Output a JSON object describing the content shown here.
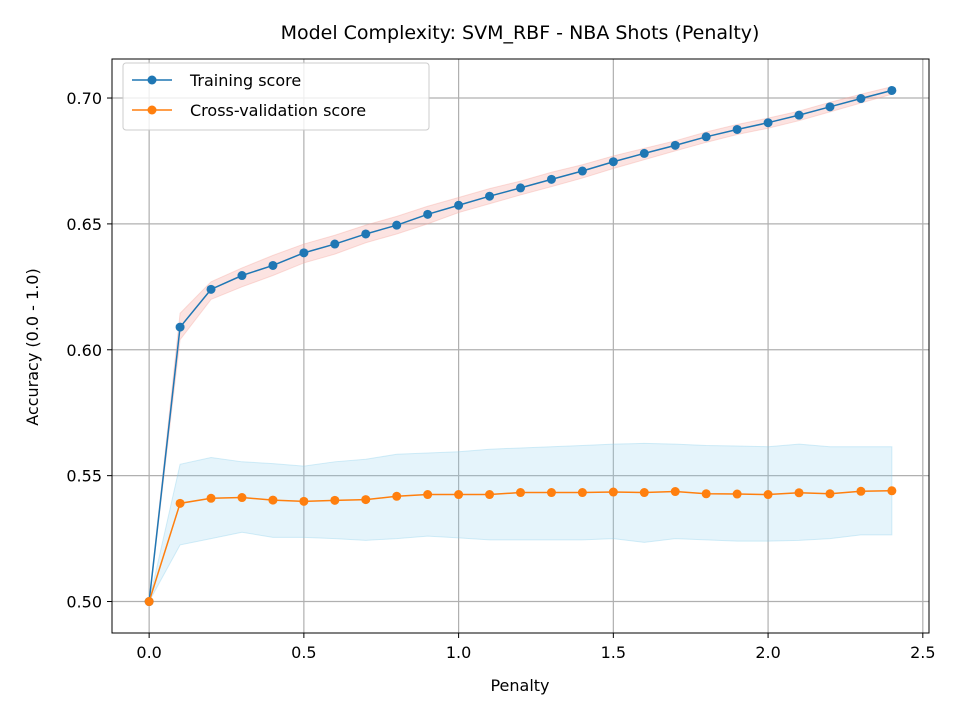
{
  "chart_data": {
    "type": "line",
    "title": "Model Complexity: SVM_RBF - NBA Shots (Penalty)",
    "xlabel": "Penalty",
    "ylabel": "Accuracy (0.0 - 1.0)",
    "xlim": [
      -0.12,
      2.52
    ],
    "ylim": [
      0.4875,
      0.7155
    ],
    "xticks": [
      0.0,
      0.5,
      1.0,
      1.5,
      2.0,
      2.5
    ],
    "xtick_labels": [
      "0.0",
      "0.5",
      "1.0",
      "1.5",
      "2.0",
      "2.5"
    ],
    "yticks": [
      0.5,
      0.55,
      0.6,
      0.65,
      0.7
    ],
    "ytick_labels": [
      "0.50",
      "0.55",
      "0.60",
      "0.65",
      "0.70"
    ],
    "grid": true,
    "legend_position": "top-left",
    "x": [
      0.0,
      0.1,
      0.2,
      0.3,
      0.4,
      0.5,
      0.6,
      0.7,
      0.8,
      0.9,
      1.0,
      1.1,
      1.2,
      1.3,
      1.4,
      1.5,
      1.6,
      1.7,
      1.8,
      1.9,
      2.0,
      2.1,
      2.2,
      2.3,
      2.4
    ],
    "series": [
      {
        "name": "Training score",
        "color": "#1f77b4",
        "band_color": "#f4a39a",
        "values": [
          0.5,
          0.609,
          0.624,
          0.6295,
          0.6335,
          0.6385,
          0.642,
          0.646,
          0.6495,
          0.6538,
          0.6574,
          0.661,
          0.6643,
          0.6677,
          0.671,
          0.6747,
          0.678,
          0.6812,
          0.6846,
          0.6875,
          0.6902,
          0.6932,
          0.6965,
          0.6998,
          0.703
        ],
        "band_low": [
          0.5,
          0.604,
          0.62,
          0.625,
          0.6295,
          0.6345,
          0.638,
          0.6425,
          0.646,
          0.65,
          0.6545,
          0.658,
          0.6615,
          0.6648,
          0.6682,
          0.672,
          0.6755,
          0.679,
          0.6824,
          0.6855,
          0.688,
          0.691,
          0.6945,
          0.698,
          0.7015
        ],
        "band_high": [
          0.5,
          0.6145,
          0.627,
          0.6325,
          0.6375,
          0.642,
          0.6455,
          0.6495,
          0.653,
          0.657,
          0.6605,
          0.664,
          0.667,
          0.6705,
          0.6735,
          0.677,
          0.68,
          0.683,
          0.6865,
          0.6895,
          0.692,
          0.6948,
          0.6983,
          0.7015,
          0.7045
        ]
      },
      {
        "name": "Cross-validation score",
        "color": "#ff7f0e",
        "band_color": "#87ceeb",
        "values": [
          0.5,
          0.539,
          0.541,
          0.5413,
          0.5403,
          0.5398,
          0.5402,
          0.5405,
          0.5418,
          0.5425,
          0.5425,
          0.5425,
          0.5433,
          0.5433,
          0.5433,
          0.5435,
          0.5433,
          0.5437,
          0.5428,
          0.5427,
          0.5425,
          0.5432,
          0.5428,
          0.5438,
          0.544
        ],
        "band_low": [
          0.5,
          0.5225,
          0.525,
          0.5275,
          0.5255,
          0.5255,
          0.525,
          0.5243,
          0.525,
          0.526,
          0.5253,
          0.5245,
          0.5245,
          0.5245,
          0.5245,
          0.525,
          0.5235,
          0.525,
          0.5245,
          0.524,
          0.524,
          0.5243,
          0.525,
          0.5265,
          0.5265
        ],
        "band_high": [
          0.5,
          0.5545,
          0.5572,
          0.5555,
          0.5548,
          0.5538,
          0.5555,
          0.5565,
          0.5585,
          0.559,
          0.5595,
          0.5605,
          0.561,
          0.5615,
          0.562,
          0.5625,
          0.5628,
          0.5625,
          0.562,
          0.5618,
          0.5615,
          0.5625,
          0.5615,
          0.5615,
          0.5615
        ]
      }
    ]
  }
}
